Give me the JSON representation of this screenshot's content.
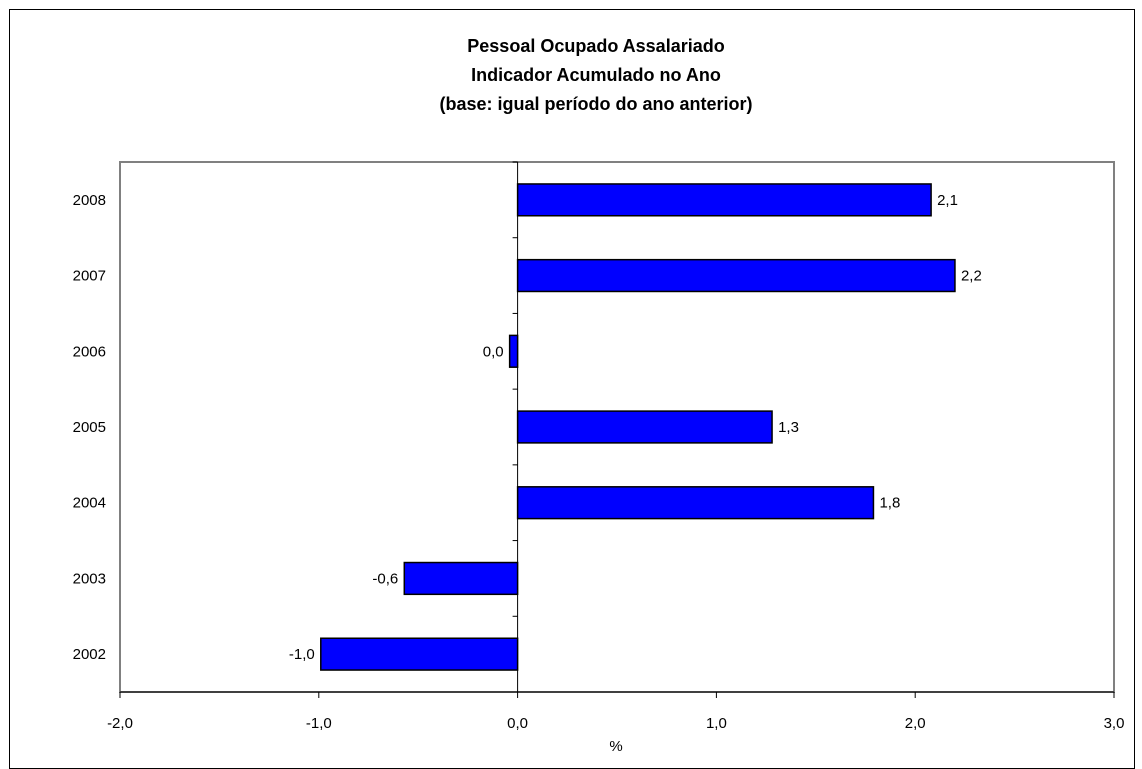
{
  "chart_data": {
    "type": "bar",
    "orientation": "horizontal",
    "title": [
      "Pessoal Ocupado Assalariado",
      "Indicador Acumulado no Ano",
      "(base: igual período do ano anterior)"
    ],
    "categories": [
      "2008",
      "2007",
      "2006",
      "2005",
      "2004",
      "2003",
      "2002"
    ],
    "values": [
      2.08,
      2.2,
      -0.04,
      1.28,
      1.79,
      -0.57,
      -0.99
    ],
    "data_labels": [
      "2,1",
      "2,2",
      "0,0",
      "1,3",
      "1,8",
      "-0,6",
      "-1,0"
    ],
    "xlabel": "%",
    "xlim": [
      -2.0,
      3.0
    ],
    "xticks": [
      -2.0,
      -1.0,
      0.0,
      1.0,
      2.0,
      3.0
    ],
    "xtick_labels": [
      "-2,0",
      "-1,0",
      "0,0",
      "1,0",
      "2,0",
      "3,0"
    ],
    "bar_color": "#0000ff",
    "grid": false,
    "legend": "none"
  }
}
